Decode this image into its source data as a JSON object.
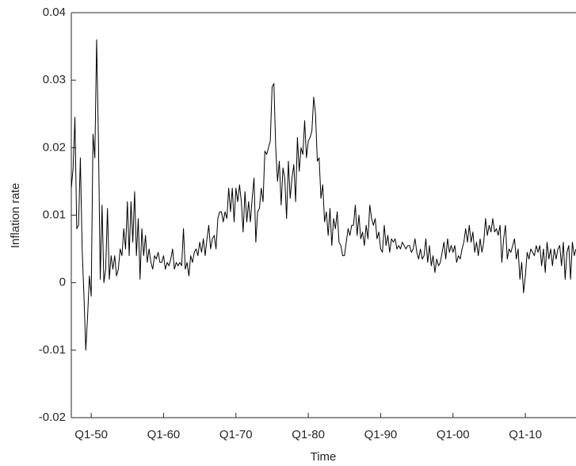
{
  "chart_data": {
    "type": "line",
    "x_label": "Time",
    "y_label": "Inflation rate",
    "color": "#000000",
    "xlim": [
      1947.25,
      2017
    ],
    "ylim": [
      -0.02,
      0.04
    ],
    "xticks": [
      {
        "value": 1950,
        "label": "Q1-50"
      },
      {
        "value": 1960,
        "label": "Q1-60"
      },
      {
        "value": 1970,
        "label": "Q1-70"
      },
      {
        "value": 1980,
        "label": "Q1-80"
      },
      {
        "value": 1990,
        "label": "Q1-90"
      },
      {
        "value": 2000,
        "label": "Q1-00"
      },
      {
        "value": 2010,
        "label": "Q1-10"
      }
    ],
    "yticks": [
      -0.02,
      -0.01,
      0,
      0.01,
      0.02,
      0.03,
      0.04
    ],
    "x": [
      1947.25,
      1947.5,
      1947.75,
      1948,
      1948.25,
      1948.5,
      1948.75,
      1949,
      1949.25,
      1949.5,
      1949.75,
      1950,
      1950.25,
      1950.5,
      1950.75,
      1951,
      1951.25,
      1951.5,
      1951.75,
      1952,
      1952.25,
      1952.5,
      1952.75,
      1953,
      1953.25,
      1953.5,
      1953.75,
      1954,
      1954.25,
      1954.5,
      1954.75,
      1955,
      1955.25,
      1955.5,
      1955.75,
      1956,
      1956.25,
      1956.5,
      1956.75,
      1957,
      1957.25,
      1957.5,
      1957.75,
      1958,
      1958.25,
      1958.5,
      1958.75,
      1959,
      1959.25,
      1959.5,
      1959.75,
      1960,
      1960.25,
      1960.5,
      1960.75,
      1961,
      1961.25,
      1961.5,
      1961.75,
      1962,
      1962.25,
      1962.5,
      1962.75,
      1963,
      1963.25,
      1963.5,
      1963.75,
      1964,
      1964.25,
      1964.5,
      1964.75,
      1965,
      1965.25,
      1965.5,
      1965.75,
      1966,
      1966.25,
      1966.5,
      1966.75,
      1967,
      1967.25,
      1967.5,
      1967.75,
      1968,
      1968.25,
      1968.5,
      1968.75,
      1969,
      1969.25,
      1969.5,
      1969.75,
      1970,
      1970.25,
      1970.5,
      1970.75,
      1971,
      1971.25,
      1971.5,
      1971.75,
      1972,
      1972.25,
      1972.5,
      1972.75,
      1973,
      1973.25,
      1973.5,
      1973.75,
      1974,
      1974.25,
      1974.5,
      1974.75,
      1975,
      1975.25,
      1975.5,
      1975.75,
      1976,
      1976.25,
      1976.5,
      1976.75,
      1977,
      1977.25,
      1977.5,
      1977.75,
      1978,
      1978.25,
      1978.5,
      1978.75,
      1979,
      1979.25,
      1979.5,
      1979.75,
      1980,
      1980.25,
      1980.5,
      1980.75,
      1981,
      1981.25,
      1981.5,
      1981.75,
      1982,
      1982.25,
      1982.5,
      1982.75,
      1983,
      1983.25,
      1983.5,
      1983.75,
      1984,
      1984.25,
      1984.5,
      1984.75,
      1985,
      1985.25,
      1985.5,
      1985.75,
      1986,
      1986.25,
      1986.5,
      1986.75,
      1987,
      1987.25,
      1987.5,
      1987.75,
      1988,
      1988.25,
      1988.5,
      1988.75,
      1989,
      1989.25,
      1989.5,
      1989.75,
      1990,
      1990.25,
      1990.5,
      1990.75,
      1991,
      1991.25,
      1991.5,
      1991.75,
      1992,
      1992.25,
      1992.5,
      1992.75,
      1993,
      1993.25,
      1993.5,
      1993.75,
      1994,
      1994.25,
      1994.5,
      1994.75,
      1995,
      1995.25,
      1995.5,
      1995.75,
      1996,
      1996.25,
      1996.5,
      1996.75,
      1997,
      1997.25,
      1997.5,
      1997.75,
      1998,
      1998.25,
      1998.5,
      1998.75,
      1999,
      1999.25,
      1999.5,
      1999.75,
      2000,
      2000.25,
      2000.5,
      2000.75,
      2001,
      2001.25,
      2001.5,
      2001.75,
      2002,
      2002.25,
      2002.5,
      2002.75,
      2003,
      2003.25,
      2003.5,
      2003.75,
      2004,
      2004.25,
      2004.5,
      2004.75,
      2005,
      2005.25,
      2005.5,
      2005.75,
      2006,
      2006.25,
      2006.5,
      2006.75,
      2007,
      2007.25,
      2007.5,
      2007.75,
      2008,
      2008.25,
      2008.5,
      2008.75,
      2009,
      2009.25,
      2009.5,
      2009.75,
      2010,
      2010.25,
      2010.5,
      2010.75,
      2011,
      2011.25,
      2011.5,
      2011.75,
      2012,
      2012.25,
      2012.5,
      2012.75,
      2013,
      2013.25,
      2013.5,
      2013.75,
      2014,
      2014.25,
      2014.5,
      2014.75,
      2015,
      2015.25,
      2015.5,
      2015.75,
      2016,
      2016.25,
      2016.5,
      2016.75,
      2017
    ],
    "values": [
      0.014,
      0.017,
      0.0245,
      0.008,
      0.0085,
      0.0185,
      0.005,
      -0.002,
      -0.01,
      -0.005,
      0.001,
      -0.002,
      0.022,
      0.0185,
      0.036,
      0.021,
      0.0005,
      0.0115,
      0.0,
      0.002,
      0.011,
      0.0005,
      0.004,
      0.002,
      0.004,
      0.001,
      0.002,
      0.005,
      0.004,
      0.008,
      0.005,
      0.012,
      0.004,
      0.012,
      0.006,
      0.0135,
      0.004,
      0.0095,
      0.0005,
      0.008,
      0.004,
      0.007,
      0.003,
      0.005,
      0.003,
      0.002,
      0.004,
      0.0035,
      0.0045,
      0.003,
      0.003,
      0.004,
      0.002,
      0.003,
      0.0025,
      0.0035,
      0.005,
      0.002,
      0.003,
      0.0025,
      0.003,
      0.0025,
      0.008,
      0.002,
      0.003,
      0.001,
      0.004,
      0.003,
      0.0045,
      0.005,
      0.004,
      0.006,
      0.0045,
      0.0065,
      0.004,
      0.0065,
      0.0085,
      0.005,
      0.0065,
      0.007,
      0.005,
      0.0095,
      0.0105,
      0.0105,
      0.009,
      0.0105,
      0.0095,
      0.014,
      0.0105,
      0.014,
      0.009,
      0.014,
      0.012,
      0.0145,
      0.012,
      0.0075,
      0.0135,
      0.009,
      0.012,
      0.009,
      0.0125,
      0.0155,
      0.006,
      0.0105,
      0.011,
      0.014,
      0.012,
      0.0195,
      0.019,
      0.02,
      0.021,
      0.029,
      0.0295,
      0.02,
      0.015,
      0.018,
      0.0115,
      0.017,
      0.0155,
      0.0095,
      0.018,
      0.0125,
      0.0155,
      0.0175,
      0.012,
      0.0215,
      0.0165,
      0.02,
      0.019,
      0.024,
      0.0185,
      0.021,
      0.0215,
      0.0225,
      0.0275,
      0.025,
      0.018,
      0.0185,
      0.0125,
      0.0145,
      0.009,
      0.0105,
      0.007,
      0.011,
      0.0055,
      0.0095,
      0.008,
      0.0105,
      0.006,
      0.0055,
      0.004,
      0.004,
      0.006,
      0.008,
      0.007,
      0.0085,
      0.0085,
      0.0115,
      0.007,
      0.01,
      0.0065,
      0.0075,
      0.0055,
      0.0085,
      0.0065,
      0.0115,
      0.0095,
      0.0085,
      0.0095,
      0.0065,
      0.0075,
      0.005,
      0.0045,
      0.0085,
      0.0055,
      0.007,
      0.0045,
      0.0065,
      0.006,
      0.0065,
      0.005,
      0.0055,
      0.005,
      0.006,
      0.0055,
      0.005,
      0.0055,
      0.0055,
      0.0045,
      0.005,
      0.0065,
      0.0045,
      0.0035,
      0.005,
      0.0035,
      0.004,
      0.0065,
      0.003,
      0.0055,
      0.0025,
      0.004,
      0.0015,
      0.0035,
      0.0025,
      0.003,
      0.0045,
      0.006,
      0.0035,
      0.0065,
      0.0045,
      0.0055,
      0.0045,
      0.0055,
      0.003,
      0.004,
      0.0035,
      0.005,
      0.006,
      0.008,
      0.006,
      0.0085,
      0.006,
      0.0075,
      0.0045,
      0.006,
      0.004,
      0.0065,
      0.0045,
      0.006,
      0.0095,
      0.007,
      0.0085,
      0.0075,
      0.0095,
      0.0075,
      0.008,
      0.007,
      0.0085,
      0.003,
      0.0065,
      0.0085,
      0.0035,
      0.005,
      0.0045,
      0.0055,
      0.0065,
      0.0035,
      0.005,
      0.0005,
      0.003,
      -0.0015,
      0.001,
      0.0045,
      0.0035,
      0.005,
      0.0045,
      0.004,
      0.0055,
      0.0045,
      0.0055,
      0.0025,
      0.005,
      0.0015,
      0.006,
      0.0035,
      0.005,
      0.0025,
      0.005,
      0.0035,
      0.005,
      0.0055,
      0.0025,
      0.006,
      0.0005,
      0.0045,
      0.0055,
      0.0005,
      0.006,
      0.004,
      0.005
    ]
  }
}
